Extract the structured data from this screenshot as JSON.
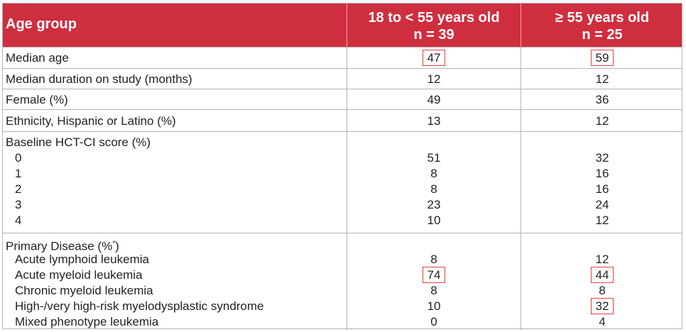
{
  "header": {
    "title": "Age group",
    "col1_line1": "18 to < 55 years old",
    "col1_line2": "n = 39",
    "col2_line1": "≥ 55 years old",
    "col2_line2": "n = 25"
  },
  "rows": {
    "median_age": {
      "label": "Median age",
      "v1": "47",
      "v2": "59"
    },
    "duration": {
      "label": "Median duration on study (months)",
      "v1": "12",
      "v2": "12"
    },
    "female": {
      "label": "Female (%)",
      "v1": "49",
      "v2": "36"
    },
    "ethnicity": {
      "label": "Ethnicity, Hispanic or Latino (%)",
      "v1": "13",
      "v2": "12"
    }
  },
  "hctci": {
    "label": "Baseline HCT-CI score (%)",
    "items": [
      {
        "label": "0",
        "v1": "51",
        "v2": "32"
      },
      {
        "label": "1",
        "v1": "8",
        "v2": "16"
      },
      {
        "label": "2",
        "v1": "8",
        "v2": "16"
      },
      {
        "label": "3",
        "v1": "23",
        "v2": "24"
      },
      {
        "label": "4",
        "v1": "10",
        "v2": "12"
      }
    ]
  },
  "disease": {
    "label": "Primary Disease (%*)",
    "label_main": "Primary Disease (%",
    "label_sup": "*",
    "label_end": ")",
    "items": [
      {
        "label": "Acute lymphoid leukemia",
        "v1": "8",
        "v2": "12"
      },
      {
        "label": "Acute myeloid leukemia",
        "v1": "74",
        "v2": "44"
      },
      {
        "label": "Chronic myeloid leukemia",
        "v1": "8",
        "v2": "8"
      },
      {
        "label": "High-/very high-risk myelodysplastic syndrome",
        "v1": "10",
        "v2": "32"
      },
      {
        "label": "Mixed phenotype leukemia",
        "v1": "0",
        "v2": "4"
      }
    ]
  },
  "colors": {
    "header_bg": "#cf2e3f",
    "highlight_box": "#e0443f",
    "grid": "#b3b3b3"
  }
}
